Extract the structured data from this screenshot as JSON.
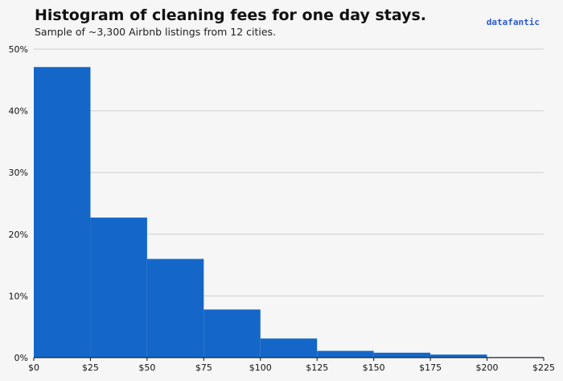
{
  "header": {
    "title": "Histogram of cleaning fees for one day stays.",
    "subtitle": "Sample of ~3,300 Airbnb listings from 12 cities.",
    "brand": "datafantic"
  },
  "colors": {
    "bar": "#1467c8",
    "grid": "#cfcfcf",
    "axis": "#111111",
    "brand": "#2a59d9"
  },
  "chart_data": {
    "type": "bar",
    "title": "Histogram of cleaning fees for one day stays.",
    "subtitle": "Sample of ~3,300 Airbnb listings from 12 cities.",
    "xlabel": "",
    "ylabel": "",
    "bin_edges": [
      0,
      25,
      50,
      75,
      100,
      125,
      150,
      175,
      200,
      225
    ],
    "x_tick_labels": [
      "$0",
      "$25",
      "$50",
      "$75",
      "$100",
      "$125",
      "$150",
      "$175",
      "$200",
      "$225"
    ],
    "values": [
      47.1,
      22.7,
      16.0,
      7.8,
      3.1,
      1.1,
      0.8,
      0.5,
      0.1
    ],
    "unit": "%",
    "y_ticks": [
      0,
      10,
      20,
      30,
      40,
      50
    ],
    "y_tick_labels": [
      "0%",
      "10%",
      "20%",
      "30%",
      "40%",
      "50%"
    ],
    "xlim": [
      0,
      225
    ],
    "ylim": [
      0,
      50
    ],
    "grid": "horizontal"
  }
}
